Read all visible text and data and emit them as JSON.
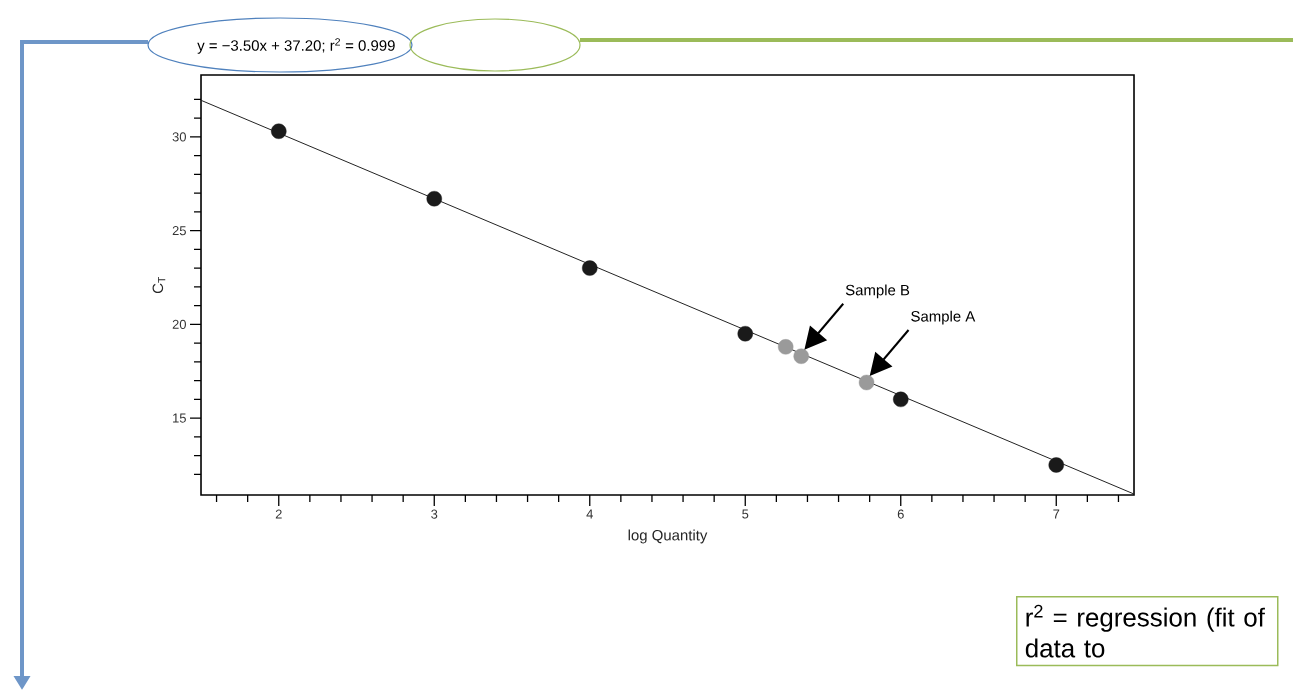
{
  "chart_data": {
    "type": "scatter",
    "xlabel": "log Quantity",
    "ylabel": "C$_{T}$",
    "xlim": [
      1.5,
      7.5
    ],
    "ylim": [
      10.9,
      33.3
    ],
    "xticks": [
      {
        "value": 1.6,
        "label": null
      },
      {
        "value": 1.8,
        "label": null
      },
      2,
      {
        "value": 2.2,
        "label": null
      },
      {
        "value": 2.4,
        "label": null
      },
      {
        "value": 2.6,
        "label": null
      },
      {
        "value": 2.8,
        "label": null
      },
      3,
      {
        "value": 3.2,
        "label": null
      },
      {
        "value": 3.4,
        "label": null
      },
      {
        "value": 3.6,
        "label": null
      },
      {
        "value": 3.8,
        "label": null
      },
      4,
      {
        "value": 4.2,
        "label": null
      },
      {
        "value": 4.4,
        "label": null
      },
      {
        "value": 4.6,
        "label": null
      },
      {
        "value": 4.8,
        "label": null
      },
      5,
      {
        "value": 5.2,
        "label": null
      },
      {
        "value": 5.4,
        "label": null
      },
      {
        "value": 5.6,
        "label": null
      },
      {
        "value": 5.8,
        "label": null
      },
      6,
      {
        "value": 6.2,
        "label": null
      },
      {
        "value": 6.4,
        "label": null
      },
      {
        "value": 6.6,
        "label": null
      },
      {
        "value": 6.8,
        "label": null
      },
      7,
      {
        "value": 7.2,
        "label": null
      },
      {
        "value": 7.4,
        "label": null
      }
    ],
    "yticks": [
      {
        "value": 12,
        "label": null
      },
      {
        "value": 13,
        "label": null
      },
      {
        "value": 14,
        "label": null
      },
      15,
      {
        "value": 16,
        "label": null
      },
      {
        "value": 17,
        "label": null
      },
      {
        "value": 18,
        "label": null
      },
      {
        "value": 19,
        "label": null
      },
      20,
      {
        "value": 21,
        "label": null
      },
      {
        "value": 22,
        "label": null
      },
      {
        "value": 23,
        "label": null
      },
      {
        "value": 24,
        "label": null
      },
      25,
      {
        "value": 26,
        "label": null
      },
      {
        "value": 27,
        "label": null
      },
      {
        "value": 28,
        "label": null
      },
      {
        "value": 29,
        "label": null
      },
      30,
      {
        "value": 31,
        "label": null
      },
      {
        "value": 32,
        "label": null
      }
    ],
    "series": [
      {
        "type": "line",
        "marker": "none",
        "color": "#222222",
        "x": [
          1.5,
          7.5
        ],
        "values": [
          31.95,
          10.95
        ]
      },
      {
        "type": "scatter",
        "marker": "circle",
        "color": "#1a1a1a",
        "x": [
          2,
          3,
          4,
          5,
          6,
          7
        ],
        "values": [
          30.3,
          26.7,
          23.0,
          19.5,
          16.0,
          12.5
        ]
      },
      {
        "type": "scatter",
        "marker": "circle",
        "color": "#9a9a9a",
        "x": [
          5.26,
          5.36,
          5.78
        ],
        "values": [
          18.8,
          18.3,
          16.9
        ]
      }
    ],
    "annotations": [
      "y = −3.50x + 37.20; r$^{2}$ = 0.999",
      "Sample B",
      "Sample A",
      "r$^{2}$ = regression (fit of data to"
    ]
  }
}
